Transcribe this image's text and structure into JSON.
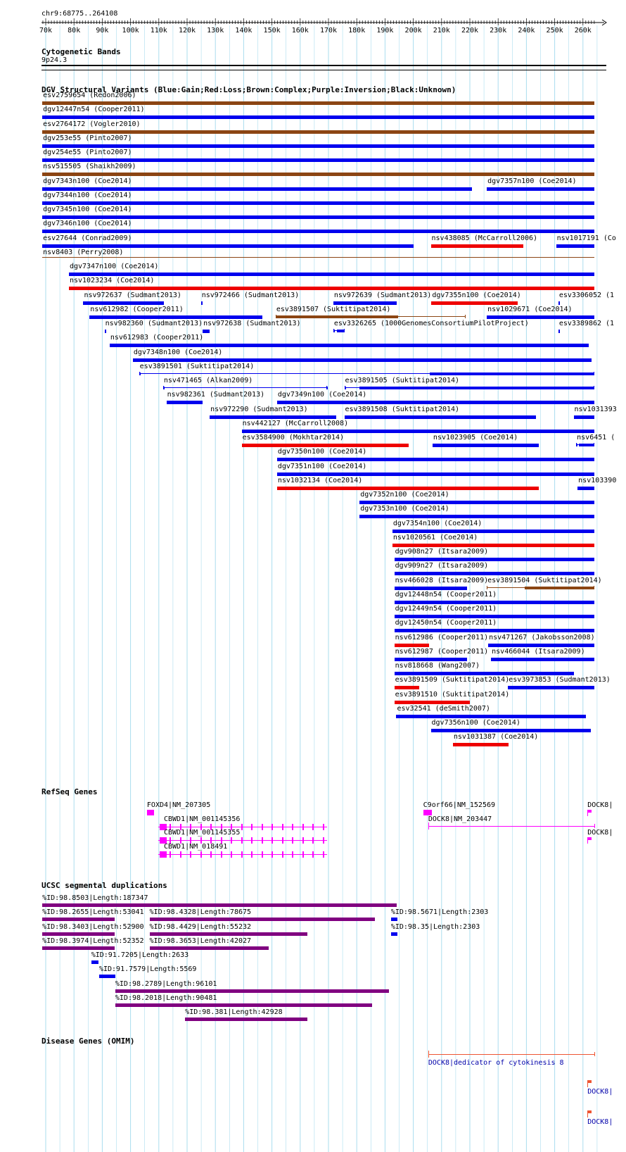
{
  "position": "chr9:68775..264108",
  "ruler": {
    "labels": [
      "70k",
      "80k",
      "90k",
      "100k",
      "110k",
      "120k",
      "130k",
      "140k",
      "150k",
      "160k",
      "170k",
      "180k",
      "190k",
      "200k",
      "210k",
      "220k",
      "230k",
      "240k",
      "250k",
      "260k"
    ]
  },
  "colors": {
    "gain": "#0000ee",
    "loss": "#ee0000",
    "complex": "#8b4513",
    "segdup": "#800080",
    "gene": "#ff00ff",
    "omim_line": "#ee5533",
    "omim_text": "#0000aa",
    "grid": "#aaddee"
  },
  "tracks": {
    "cytoband": {
      "title": "Cytogenetic Bands",
      "band": "9p24.3"
    },
    "dgv": {
      "title": "DGV Structural Variants (Blue:Gain;Red:Loss;Brown:Complex;Purple:Inversion;Black:Unknown)"
    },
    "refseq": {
      "title": "RefSeq Genes"
    },
    "segdup": {
      "title": "UCSC segmental duplications"
    },
    "omim": {
      "title": "Disease Genes (OMIM)"
    }
  },
  "dgv_features": [
    {
      "label": "esv2759654 (Redon2006)",
      "start": 68775,
      "end": 264108,
      "type": "complex",
      "row": 0
    },
    {
      "label": "dgv12447n54 (Cooper2011)",
      "start": 68775,
      "end": 264108,
      "type": "gain",
      "row": 1
    },
    {
      "label": "esv2764172 (Vogler2010)",
      "start": 68775,
      "end": 264108,
      "type": "complex",
      "row": 2
    },
    {
      "label": "dgv253e55 (Pinto2007)",
      "start": 68775,
      "end": 264108,
      "type": "gain",
      "row": 3
    },
    {
      "label": "dgv254e55 (Pinto2007)",
      "start": 68775,
      "end": 264108,
      "type": "gain",
      "row": 4
    },
    {
      "label": "nsv515505 (Shaikh2009)",
      "start": 68775,
      "end": 264108,
      "type": "complex",
      "row": 5
    },
    {
      "label": "dgv7343n100 (Coe2014)",
      "start": 68775,
      "end": 220800,
      "type": "gain",
      "row": 6
    },
    {
      "label": "dgv7357n100 (Coe2014)",
      "start": 226000,
      "end": 264108,
      "type": "gain",
      "row": 6
    },
    {
      "label": "dgv7344n100 (Coe2014)",
      "start": 68775,
      "end": 264108,
      "type": "gain",
      "row": 7
    },
    {
      "label": "dgv7345n100 (Coe2014)",
      "start": 68775,
      "end": 264108,
      "type": "gain",
      "row": 8
    },
    {
      "label": "dgv7346n100 (Coe2014)",
      "start": 68775,
      "end": 264108,
      "type": "gain",
      "row": 9
    },
    {
      "label": "esv27644 (Conrad2009)",
      "start": 68775,
      "end": 200000,
      "type": "gain",
      "row": 10
    },
    {
      "label": "nsv438085 (McCarroll2006)",
      "start": 206200,
      "end": 239000,
      "type": "loss",
      "row": 10
    },
    {
      "label": "nsv1017191 (Co",
      "start": 250500,
      "end": 264108,
      "type": "gain",
      "row": 10
    },
    {
      "label": "nsv8403 (Perry2008)",
      "start": 68775,
      "end": 264108,
      "type": "complex",
      "row": 11,
      "thin": true
    },
    {
      "label": "dgv7347n100 (Coe2014)",
      "start": 78200,
      "end": 264108,
      "type": "gain",
      "row": 12
    },
    {
      "label": "nsv1023234 (Coe2014)",
      "start": 78200,
      "end": 264108,
      "type": "loss",
      "row": 13
    },
    {
      "label": "nsv972637 (Sudmant2013)",
      "start": 83300,
      "end": 111800,
      "type": "gain",
      "row": 14
    },
    {
      "label": "nsv972466 (Sudmant2013)",
      "start": 124900,
      "end": 125500,
      "type": "gain",
      "row": 14
    },
    {
      "label": "nsv972639 (Sudmant2013)",
      "start": 171700,
      "end": 194200,
      "type": "gain",
      "row": 14
    },
    {
      "label": "dgv7355n100 (Coe2014)",
      "start": 206400,
      "end": 237000,
      "type": "loss",
      "row": 14
    },
    {
      "label": "esv3306052 (1",
      "start": 251300,
      "end": 251700,
      "type": "gain",
      "row": 14
    },
    {
      "label": "nsv612982 (Cooper2011)",
      "start": 85500,
      "end": 146700,
      "type": "gain",
      "row": 15
    },
    {
      "label": "esv3891507 (Suktitipat2014)",
      "start": 151300,
      "end": 218500,
      "type": "complex",
      "row": 15,
      "blocks": [
        [
          151300,
          194700
        ]
      ]
    },
    {
      "label": "nsv1029671 (Coe2014)",
      "start": 226000,
      "end": 264108,
      "type": "gain",
      "row": 15
    },
    {
      "label": "nsv982360 (Sudmant2013)",
      "start": 90800,
      "end": 91300,
      "type": "gain",
      "row": 16
    },
    {
      "label": "nsv972638 (Sudmant2013)",
      "start": 125500,
      "end": 128000,
      "type": "gain",
      "row": 16
    },
    {
      "label": "esv3326265 (1000GenomesConsortiumPilotProject)",
      "start": 171700,
      "end": 175600,
      "type": "gain",
      "row": 16,
      "blocks": [
        [
          171700,
          172300
        ],
        [
          172900,
          175600
        ]
      ]
    },
    {
      "label": "esv3389862 (1",
      "start": 251300,
      "end": 251700,
      "type": "gain",
      "row": 16
    },
    {
      "label": "nsv612983 (Cooper2011)",
      "start": 92600,
      "end": 262000,
      "type": "gain",
      "row": 17
    },
    {
      "label": "dgv7348n100 (Coe2014)",
      "start": 100800,
      "end": 263000,
      "type": "gain",
      "row": 18
    },
    {
      "label": "esv3891501 (Suktitipat2014)",
      "start": 103000,
      "end": 264108,
      "type": "gain",
      "row": 19,
      "blocks": [
        [
          103000,
          103300
        ],
        [
          205800,
          264108
        ]
      ]
    },
    {
      "label": "nsv471465 (Alkan2009)",
      "start": 111500,
      "end": 169500,
      "type": "gain",
      "row": 20,
      "blocks": [
        [
          111500,
          111800
        ],
        [
          169200,
          169500
        ]
      ]
    },
    {
      "label": "esv3891505 (Suktitipat2014)",
      "start": 175600,
      "end": 264108,
      "type": "gain",
      "row": 20,
      "blocks": [
        [
          175600,
          175900
        ],
        [
          181000,
          264108
        ]
      ]
    },
    {
      "label": "nsv982361 (Sudmant2013)",
      "start": 112700,
      "end": 125500,
      "type": "gain",
      "row": 21
    },
    {
      "label": "dgv7349n100 (Coe2014)",
      "start": 151800,
      "end": 264108,
      "type": "gain",
      "row": 21
    },
    {
      "label": "nsv972290 (Sudmant2013)",
      "start": 128000,
      "end": 172700,
      "type": "gain",
      "row": 22
    },
    {
      "label": "esv3891508 (Suktitipat2014)",
      "start": 175600,
      "end": 243400,
      "type": "gain",
      "row": 22
    },
    {
      "label": "nsv1031393",
      "start": 256700,
      "end": 264108,
      "type": "gain",
      "row": 22
    },
    {
      "label": "nsv442127 (McCarroll2008)",
      "start": 139300,
      "end": 264108,
      "type": "gain",
      "row": 23
    },
    {
      "label": "esv3584900 (Mokhtar2014)",
      "start": 139300,
      "end": 198300,
      "type": "loss",
      "row": 24
    },
    {
      "label": "nsv1023905 (Coe2014)",
      "start": 206800,
      "end": 244400,
      "type": "gain",
      "row": 24
    },
    {
      "label": "nsv6451 (",
      "start": 257600,
      "end": 264108,
      "type": "gain",
      "row": 24,
      "blocks": [
        [
          257600,
          257900
        ],
        [
          258500,
          264108
        ]
      ]
    },
    {
      "label": "dgv7350n100 (Coe2014)",
      "start": 151800,
      "end": 264108,
      "type": "gain",
      "row": 25
    },
    {
      "label": "dgv7351n100 (Coe2014)",
      "start": 151800,
      "end": 264108,
      "type": "gain",
      "row": 26
    },
    {
      "label": "nsv1032134 (Coe2014)",
      "start": 151800,
      "end": 244400,
      "type": "loss",
      "row": 27
    },
    {
      "label": "nsv103390",
      "start": 258100,
      "end": 264108,
      "type": "gain",
      "row": 27
    },
    {
      "label": "dgv7352n100 (Coe2014)",
      "start": 181000,
      "end": 264108,
      "type": "gain",
      "row": 28
    },
    {
      "label": "dgv7353n100 (Coe2014)",
      "start": 181000,
      "end": 264108,
      "type": "gain",
      "row": 29
    },
    {
      "label": "dgv7354n100 (Coe2014)",
      "start": 192600,
      "end": 264108,
      "type": "gain",
      "row": 30
    },
    {
      "label": "nsv1020561 (Coe2014)",
      "start": 192600,
      "end": 264108,
      "type": "loss",
      "row": 31
    },
    {
      "label": "dgv908n27 (Itsara2009)",
      "start": 193300,
      "end": 264108,
      "type": "gain",
      "row": 32
    },
    {
      "label": "dgv909n27 (Itsara2009)",
      "start": 193300,
      "end": 264108,
      "type": "gain",
      "row": 33
    },
    {
      "label": "nsv466028 (Itsara2009)",
      "start": 193300,
      "end": 219100,
      "type": "gain",
      "row": 34
    },
    {
      "label": "esv3891504 (Suktitipat2014)",
      "start": 226000,
      "end": 264108,
      "type": "complex",
      "row": 34,
      "blocks": [
        [
          239500,
          264108
        ]
      ]
    },
    {
      "label": "dgv12448n54 (Cooper2011)",
      "start": 193300,
      "end": 264108,
      "type": "gain",
      "row": 35
    },
    {
      "label": "dgv12449n54 (Cooper2011)",
      "start": 193300,
      "end": 264108,
      "type": "gain",
      "row": 36
    },
    {
      "label": "dgv12450n54 (Cooper2011)",
      "start": 193300,
      "end": 264108,
      "type": "gain",
      "row": 37
    },
    {
      "label": "nsv612986 (Cooper2011)",
      "start": 193300,
      "end": 205600,
      "type": "loss",
      "row": 38
    },
    {
      "label": "nsv471267 (Jakobsson2008)",
      "start": 226500,
      "end": 264108,
      "type": "gain",
      "row": 38
    },
    {
      "label": "nsv612987 (Cooper2011)",
      "start": 193300,
      "end": 219100,
      "type": "gain",
      "row": 39
    },
    {
      "label": "nsv466044 (Itsara2009)",
      "start": 227500,
      "end": 264108,
      "type": "gain",
      "row": 39
    },
    {
      "label": "nsv818668 (Wang2007)",
      "start": 193300,
      "end": 256700,
      "type": "gain",
      "row": 40
    },
    {
      "label": "esv3891509 (Suktitipat2014)",
      "start": 193300,
      "end": 202000,
      "type": "loss",
      "row": 41
    },
    {
      "label": "esv3973853 (Sudmant2013)",
      "start": 233500,
      "end": 264108,
      "type": "gain",
      "row": 41
    },
    {
      "label": "esv3891510 (Suktitipat2014)",
      "start": 193300,
      "end": 220000,
      "type": "loss",
      "row": 42
    },
    {
      "label": "esv32541 (deSmith2007)",
      "start": 194000,
      "end": 261000,
      "type": "gain",
      "row": 43
    },
    {
      "label": "dgv7356n100 (Coe2014)",
      "start": 206200,
      "end": 262800,
      "type": "gain",
      "row": 44
    },
    {
      "label": "nsv1031387 (Coe2014)",
      "start": 214000,
      "end": 233600,
      "type": "loss",
      "row": 45
    }
  ],
  "genes": [
    {
      "label": "FOXD4|NM_207305",
      "start": 105800,
      "end": 108300,
      "row": 0,
      "kind": "box"
    },
    {
      "label": "C9orf66|NM_152569",
      "start": 203500,
      "end": 206600,
      "row": 0,
      "kind": "box"
    },
    {
      "label": "DOCK8|",
      "start": 261600,
      "end": 264108,
      "row": 0,
      "kind": "flag"
    },
    {
      "label": "CBWD1|NM_001145356",
      "start": 109800,
      "end": 169500,
      "row": 1,
      "kind": "intron"
    },
    {
      "label": "DOCK8|NM_203447",
      "start": 205300,
      "end": 264108,
      "row": 1,
      "kind": "long"
    },
    {
      "label": "CBWD1|NM_001145355",
      "start": 109800,
      "end": 169500,
      "row": 2,
      "kind": "intron"
    },
    {
      "label": "DOCK8|",
      "start": 261600,
      "end": 264108,
      "row": 2,
      "kind": "flag"
    },
    {
      "label": "CBWD1|NM_018491",
      "start": 109800,
      "end": 169500,
      "row": 3,
      "kind": "intron"
    }
  ],
  "segdups": [
    {
      "label": "%ID:98.8503|Length:187347",
      "start": 68775,
      "end": 194200,
      "row": 0
    },
    {
      "label": "%ID:98.2655|Length:53041",
      "start": 68775,
      "end": 94300,
      "row": 1
    },
    {
      "label": "%ID:98.4328|Length:78675",
      "start": 106700,
      "end": 186400,
      "row": 1
    },
    {
      "label": "%ID:98.5671|Length:2303",
      "start": 192100,
      "end": 194500,
      "row": 1
    },
    {
      "label": "%ID:98.3403|Length:52900",
      "start": 68775,
      "end": 94300,
      "row": 2
    },
    {
      "label": "%ID:98.4429|Length:55232",
      "start": 106700,
      "end": 162500,
      "row": 2
    },
    {
      "label": "%ID:98.35|Length:2303",
      "start": 192100,
      "end": 194500,
      "row": 2
    },
    {
      "label": "%ID:98.3974|Length:52352",
      "start": 68775,
      "end": 94300,
      "row": 3
    },
    {
      "label": "%ID:98.3653|Length:42027",
      "start": 106700,
      "end": 148800,
      "row": 3
    },
    {
      "label": "%ID:91.7205|Length:2633",
      "start": 86100,
      "end": 88700,
      "row": 4
    },
    {
      "label": "%ID:91.7579|Length:5569",
      "start": 88900,
      "end": 94600,
      "row": 5
    },
    {
      "label": "%ID:98.2789|Length:96101",
      "start": 94600,
      "end": 191500,
      "row": 6
    },
    {
      "label": "%ID:98.2018|Length:90481",
      "start": 94600,
      "end": 185400,
      "row": 7
    },
    {
      "label": "%ID:98.381|Length:42928",
      "start": 119300,
      "end": 162500,
      "row": 8
    }
  ],
  "omim": [
    {
      "label": "DOCK8|dedicator of cytokinesis 8",
      "start": 205300,
      "end": 264108,
      "row": 0,
      "kind": "long"
    },
    {
      "label": "DOCK8|",
      "start": 261600,
      "end": 264108,
      "row": 1,
      "kind": "flag"
    },
    {
      "label": "DOCK8|",
      "start": 261600,
      "end": 264108,
      "row": 2,
      "kind": "flag"
    }
  ]
}
